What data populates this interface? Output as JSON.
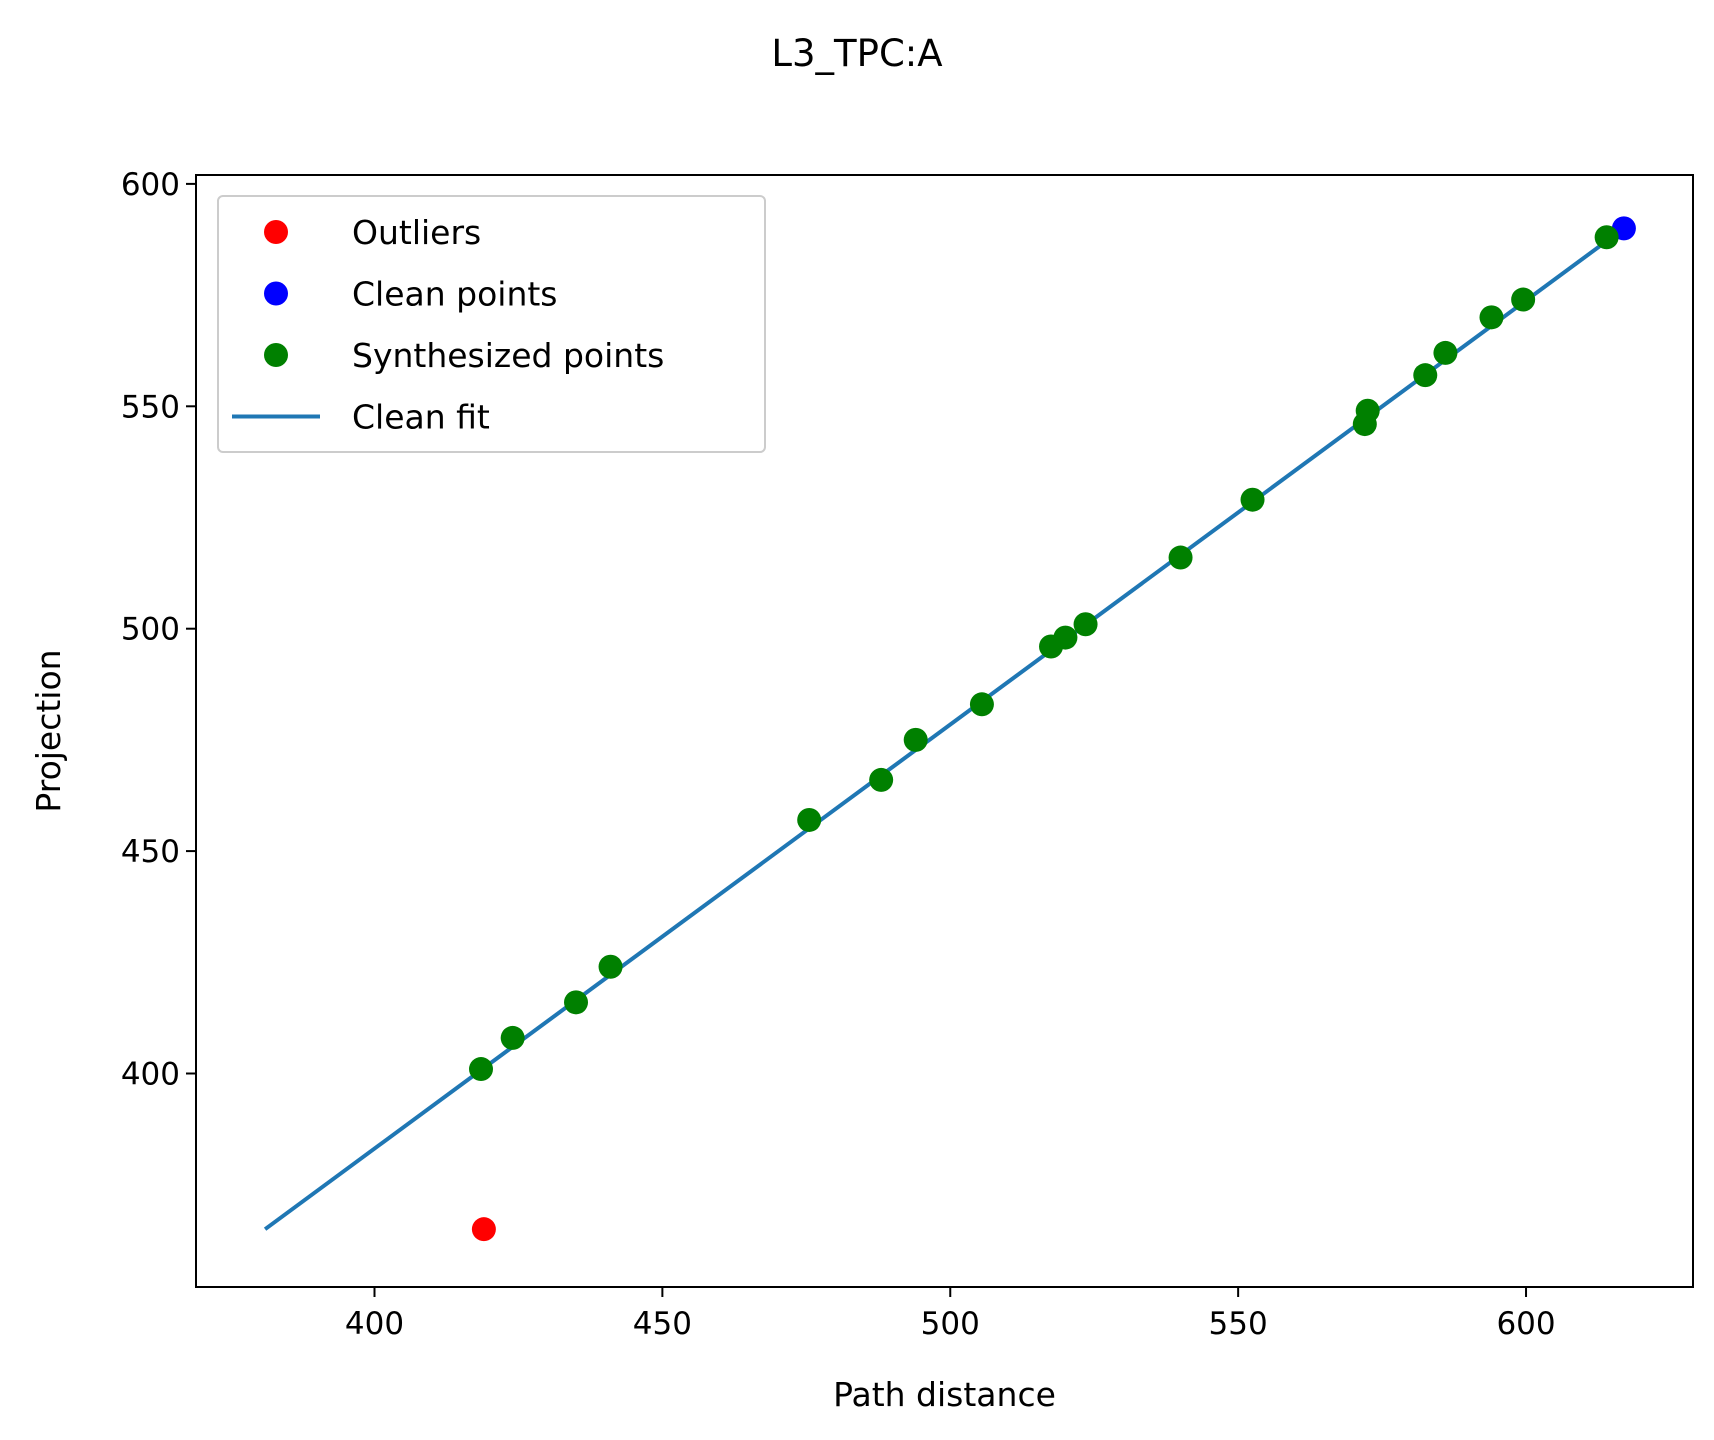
{
  "chart_data": {
    "type": "scatter",
    "title": "L3_TPC:A",
    "xlabel": "Path distance",
    "ylabel": "Projection",
    "xlim": [
      369,
      629
    ],
    "ylim": [
      352,
      602
    ],
    "xticks": [
      400,
      450,
      500,
      550,
      600
    ],
    "yticks": [
      400,
      450,
      500,
      550,
      600
    ],
    "grid": false,
    "legend_position": "upper-left",
    "legend": [
      {
        "label": "Outliers",
        "kind": "marker",
        "color": "#ff0000"
      },
      {
        "label": "Clean points",
        "kind": "marker",
        "color": "#0000ff"
      },
      {
        "label": "Synthesized points",
        "kind": "marker",
        "color": "#008000"
      },
      {
        "label": "Clean fit",
        "kind": "line",
        "color": "#1f77b4"
      }
    ],
    "series": [
      {
        "name": "Outliers",
        "kind": "scatter",
        "color": "#ff0000",
        "points": [
          [
            419,
            365
          ]
        ]
      },
      {
        "name": "Clean points",
        "kind": "scatter",
        "color": "#0000ff",
        "points": [
          [
            617,
            590
          ]
        ]
      },
      {
        "name": "Synthesized points",
        "kind": "scatter",
        "color": "#008000",
        "points": [
          [
            418.5,
            401
          ],
          [
            424,
            408
          ],
          [
            435,
            416
          ],
          [
            441,
            424
          ],
          [
            475.5,
            457
          ],
          [
            488,
            466
          ],
          [
            494,
            475
          ],
          [
            505.5,
            483
          ],
          [
            517.5,
            496
          ],
          [
            520,
            498
          ],
          [
            523.5,
            501
          ],
          [
            540,
            516
          ],
          [
            552.5,
            529
          ],
          [
            572,
            546
          ],
          [
            572.5,
            549
          ],
          [
            582.5,
            557
          ],
          [
            586,
            562
          ],
          [
            594,
            570
          ],
          [
            599.5,
            574
          ],
          [
            614,
            588
          ]
        ]
      },
      {
        "name": "Clean fit",
        "kind": "line",
        "color": "#1f77b4",
        "points": [
          [
            381,
            365
          ],
          [
            617,
            590
          ]
        ]
      }
    ]
  }
}
